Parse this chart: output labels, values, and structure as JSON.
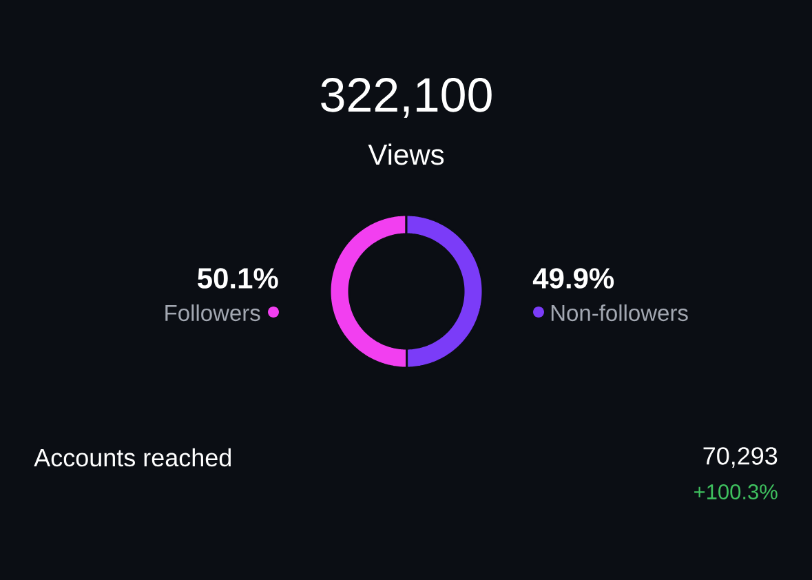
{
  "chart_data": {
    "type": "donut",
    "title": "322,100",
    "subtitle": "Views",
    "categories": [
      "Followers",
      "Non-followers"
    ],
    "values": [
      50.1,
      49.9
    ],
    "colors": [
      "#f23ff0",
      "#7b3cf8"
    ],
    "value_labels": [
      "50.1%",
      "49.9%"
    ],
    "annotations": [
      "Accounts reached",
      "70,293",
      "+100.3%"
    ]
  }
}
